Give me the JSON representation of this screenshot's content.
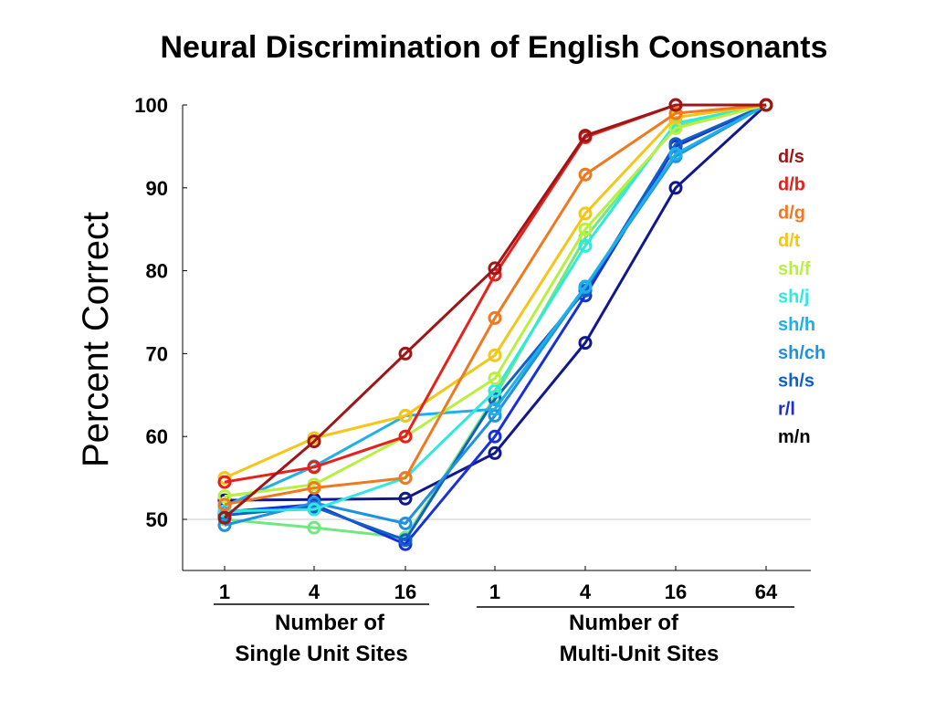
{
  "chart_data": {
    "type": "line",
    "title": "Neural Discrimination of English Consonants",
    "ylabel": "Percent Correct",
    "ylim": [
      45,
      100
    ],
    "yticks": [
      50,
      60,
      70,
      80,
      90,
      100
    ],
    "reference_line": 50,
    "x_tick_labels": [
      "1",
      "4",
      "16",
      "1",
      "4",
      "16",
      "64"
    ],
    "groups": [
      {
        "label_line1": "Number of",
        "label_line2": "Single Unit Sites"
      },
      {
        "label_line1": "Number of",
        "label_line2": "Multi-Unit Sites"
      }
    ],
    "legend_position": "right",
    "series": [
      {
        "name": "d/s",
        "color": "#a01518",
        "values": [
          50.2,
          59.4,
          70,
          80.3,
          96.3,
          100,
          100
        ]
      },
      {
        "name": "d/b",
        "color": "#e8201a",
        "values": [
          54.5,
          56.3,
          60,
          79.5,
          96.1,
          100,
          100
        ]
      },
      {
        "name": "d/g",
        "color": "#f07820",
        "values": [
          51.8,
          53.8,
          55,
          74.3,
          91.6,
          99.0,
          100
        ]
      },
      {
        "name": "d/t",
        "color": "#f5c518",
        "values": [
          55.0,
          59.8,
          62.5,
          69.8,
          86.9,
          98.5,
          100
        ]
      },
      {
        "name": "sh/f",
        "color": "#b8f040",
        "values": [
          52.8,
          54.2,
          60,
          67.0,
          85.0,
          97.2,
          100
        ]
      },
      {
        "name": "sh/j",
        "color": "#30e8e0",
        "values": [
          51.0,
          51.2,
          55,
          65.5,
          83.0,
          97.8,
          100
        ]
      },
      {
        "name": "sh/h",
        "color": "#20b0e8",
        "values": [
          51.6,
          56.4,
          62.5,
          63.3,
          78.1,
          94.1,
          100
        ]
      },
      {
        "name": "sh/ch",
        "color": "#2090e0",
        "values": [
          49.3,
          52.0,
          49.5,
          62.5,
          78.0,
          93.8,
          100
        ]
      },
      {
        "name": "sh/s",
        "color": "#1060c8",
        "values": [
          50.5,
          51.5,
          47.5,
          64.5,
          77.6,
          95.3,
          100
        ]
      },
      {
        "name": "r/l",
        "color": "#1830d8",
        "values": [
          50.9,
          51.8,
          47.0,
          60.0,
          77.0,
          95.0,
          100
        ]
      },
      {
        "name": "m/n",
        "color": "#101890",
        "values": [
          52.3,
          52.4,
          52.5,
          58.0,
          71.3,
          90.0,
          100
        ]
      },
      {
        "name": "",
        "color": "#70e880",
        "values": [
          50.0,
          49.0,
          47.8,
          64.8,
          84.0,
          97.5,
          100
        ]
      }
    ]
  }
}
